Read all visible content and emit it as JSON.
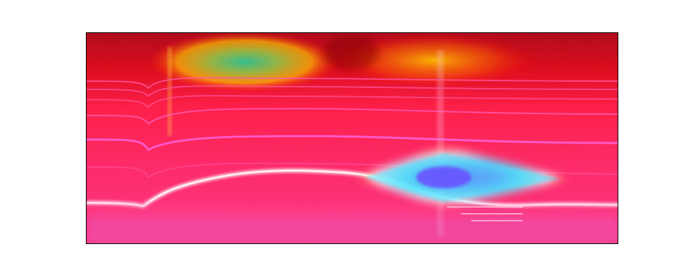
{
  "image": {
    "kind": "spectrogram-heatmap",
    "colors": {
      "background": "#ffffff",
      "plot_base": "#ff2a6a",
      "top_band": "#c00000",
      "hot_red": "#ff0033",
      "yellow": "#ffd400",
      "green": "#35c48c",
      "cyan": "#4be6ff",
      "blue_violet": "#6b4dff",
      "white_line": "#ffffff",
      "pink_lines": "#ff5aa8"
    }
  }
}
